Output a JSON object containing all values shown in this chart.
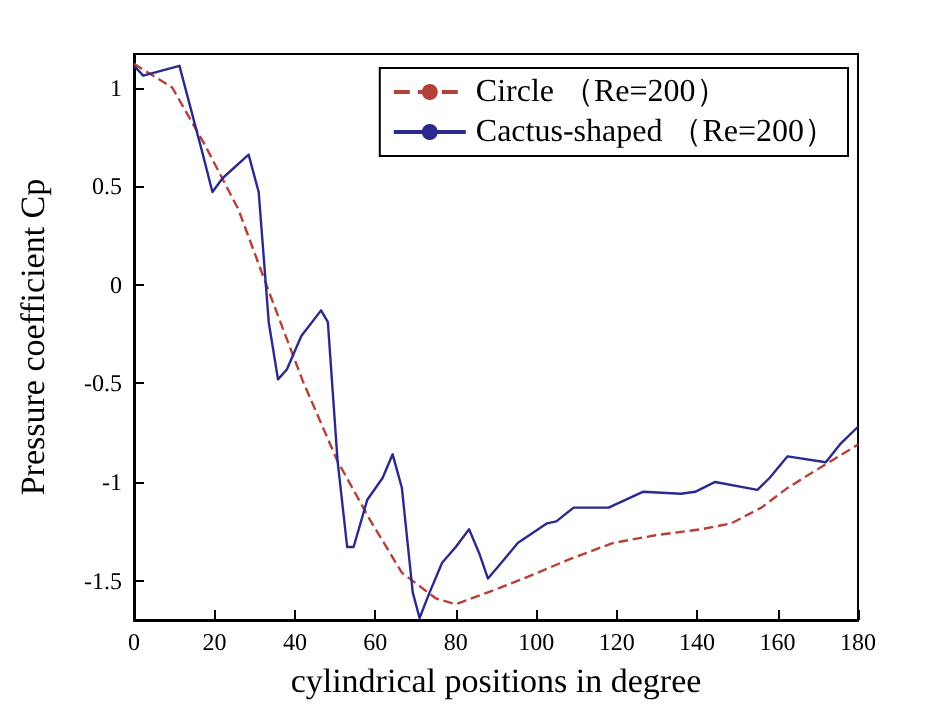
{
  "chart_data": {
    "type": "line",
    "xlabel": "cylindrical positions in degree",
    "ylabel": "Pressure coefficient Cp",
    "xlim": [
      0,
      180
    ],
    "xticks": [
      0,
      20,
      40,
      60,
      80,
      100,
      120,
      140,
      160,
      180
    ],
    "ylim": [
      -1.7,
      1.17
    ],
    "yticks": [
      -1.5,
      -1,
      -0.5,
      0,
      0.5,
      1
    ],
    "grid": false,
    "legend": "top right",
    "marker": "none",
    "series": [
      {
        "name": "Circle （Re=200）",
        "color": "#b5403a",
        "line_style": "dashed",
        "x": [
          0,
          9.5,
          17.6,
          26,
          34,
          42,
          50.5,
          58.6,
          66.6,
          75,
          80,
          88,
          98,
          108.5,
          119,
          129.7,
          141,
          148.5,
          156,
          162.5,
          172,
          180
        ],
        "values": [
          1.12,
          1.0,
          0.71,
          0.38,
          -0.06,
          -0.49,
          -0.89,
          -1.19,
          -1.46,
          -1.59,
          -1.62,
          -1.56,
          -1.48,
          -1.39,
          -1.31,
          -1.27,
          -1.24,
          -1.21,
          -1.13,
          -1.03,
          -0.91,
          -0.81
        ]
      },
      {
        "name": "Cactus-shaped （Re=200）",
        "color": "#2a2a8c",
        "line_style": "solid",
        "x": [
          0,
          2.3,
          11.3,
          17,
          19.5,
          22,
          28.5,
          31,
          33.5,
          35.8,
          38,
          41.6,
          46.5,
          48.2,
          50.6,
          53,
          54.6,
          58,
          61.8,
          64.3,
          66.6,
          69.3,
          71,
          73.5,
          76.6,
          80,
          83.3,
          85.8,
          88,
          90.5,
          95.4,
          102.7,
          105,
          109.3,
          118,
          126.5,
          136,
          139.5,
          144.5,
          155,
          158,
          162.5,
          172,
          175.5,
          180
        ],
        "values": [
          1.11,
          1.06,
          1.11,
          0.67,
          0.47,
          0.54,
          0.66,
          0.47,
          -0.19,
          -0.48,
          -0.43,
          -0.26,
          -0.13,
          -0.19,
          -0.89,
          -1.33,
          -1.33,
          -1.09,
          -0.98,
          -0.86,
          -1.03,
          -1.56,
          -1.69,
          -1.56,
          -1.41,
          -1.33,
          -1.24,
          -1.36,
          -1.49,
          -1.43,
          -1.31,
          -1.21,
          -1.2,
          -1.13,
          -1.13,
          -1.05,
          -1.06,
          -1.05,
          -1.0,
          -1.04,
          -0.98,
          -0.87,
          -0.9,
          -0.81,
          -0.72
        ]
      }
    ]
  }
}
